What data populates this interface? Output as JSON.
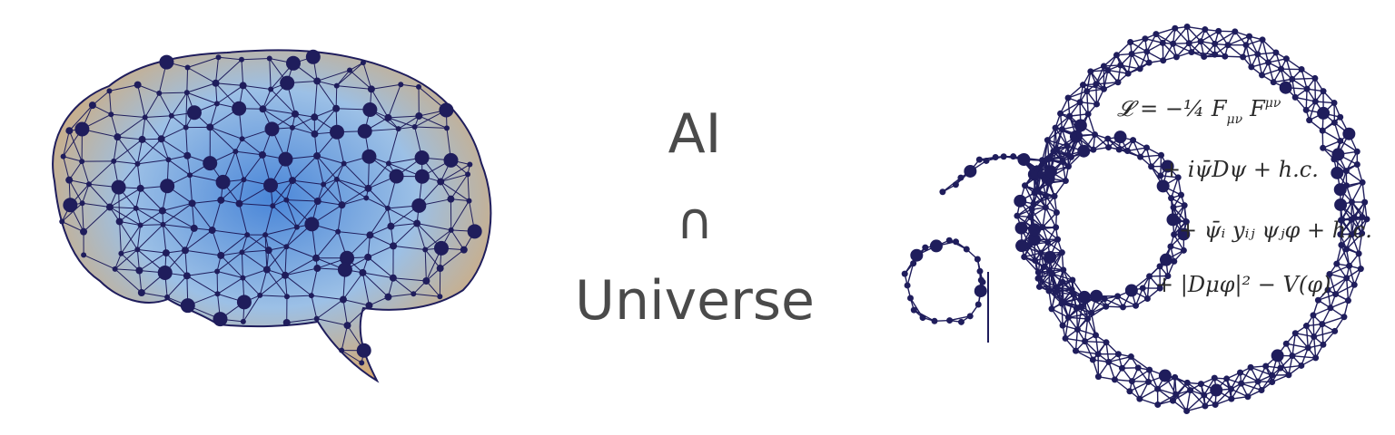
{
  "title": {
    "line1": "AI",
    "line2": "∩",
    "line3": "Universe"
  },
  "lagrangian": {
    "term1": "𝓛 = −¼ F",
    "term1_sub": "μν",
    "term1_b": "F",
    "term1_sup": "μν",
    "term2": "+ iψ̄Dψ + h.c.",
    "term3": "+ ψ̄ᵢ yᵢⱼ ψⱼφ + h.c.",
    "term4": "+ |Dμφ|² − V(φ)"
  },
  "colors": {
    "network": "#1f1d5c",
    "text": "#4a4a4a",
    "heat_blue": "#3d7fd6",
    "heat_orange": "#e08a3a",
    "heat_light": "#a9c7e6"
  },
  "icons": {
    "brain": "brain-network-illustration",
    "cosmic": "cosmic-network-illustration"
  }
}
